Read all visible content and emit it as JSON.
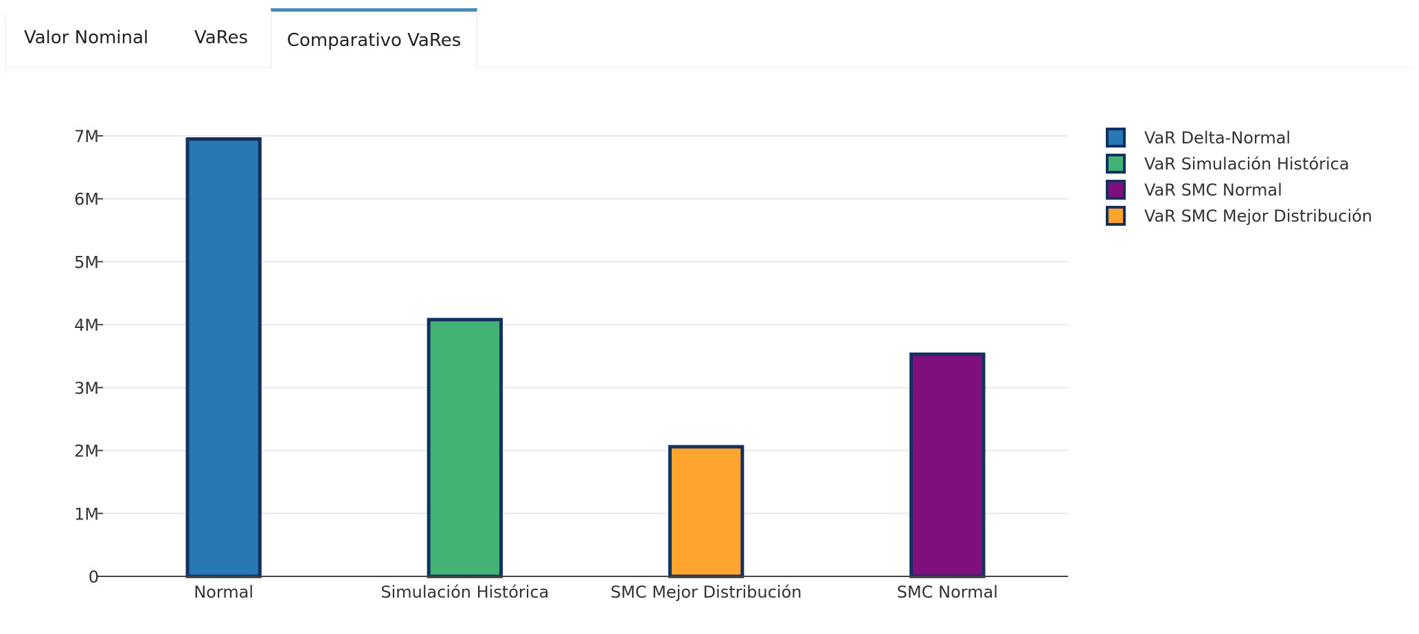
{
  "tabs": [
    {
      "label": "Valor Nominal",
      "active": false
    },
    {
      "label": "VaRes",
      "active": false
    },
    {
      "label": "Comparativo VaRes",
      "active": true
    }
  ],
  "chart_data": {
    "type": "bar",
    "categories": [
      "Normal",
      "Simulación Histórica",
      "SMC Mejor Distribución",
      "SMC Normal"
    ],
    "series": [
      {
        "name": "VaR Delta-Normal",
        "color": "#2878b4",
        "values": [
          6950000,
          null,
          null,
          null
        ]
      },
      {
        "name": "VaR Simulación Histórica",
        "color": "#42b374",
        "values": [
          null,
          4080000,
          null,
          null
        ]
      },
      {
        "name": "VaR SMC Normal",
        "color": "#800f7e",
        "values": [
          null,
          null,
          null,
          3530000
        ]
      },
      {
        "name": "VaR SMC Mejor Distribución",
        "color": "#ffa42d",
        "values": [
          null,
          null,
          2060000,
          null
        ]
      }
    ],
    "bar_border_color": "#13315f",
    "ylim": [
      0,
      7000000
    ],
    "yticks": [
      {
        "value": 0,
        "label": "0"
      },
      {
        "value": 1000000,
        "label": "1M"
      },
      {
        "value": 2000000,
        "label": "2M"
      },
      {
        "value": 3000000,
        "label": "3M"
      },
      {
        "value": 4000000,
        "label": "4M"
      },
      {
        "value": 5000000,
        "label": "5M"
      },
      {
        "value": 6000000,
        "label": "6M"
      },
      {
        "value": 7000000,
        "label": "7M"
      }
    ],
    "grid": true,
    "legend_position": "top-right",
    "title": "",
    "xlabel": "",
    "ylabel": ""
  }
}
